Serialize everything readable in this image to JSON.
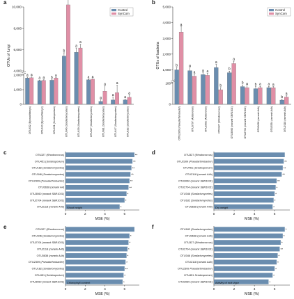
{
  "colors": {
    "control": "#6a8daf",
    "syncom": "#e08fa6",
    "hbar": "#6a8daf",
    "axis": "#333333"
  },
  "legend": {
    "control": "Control",
    "syncom": "SynCom"
  },
  "chart_data": [
    {
      "panel": "a",
      "type": "bar",
      "ylabel": "OTUs of fungi",
      "yticks": [
        "0",
        "1,000",
        "2,000",
        "4,000",
        "6,000",
        "8,000",
        "10,000"
      ],
      "ybreak": [
        2000,
        4000
      ],
      "legend_position": "top-right",
      "categories": [
        "OTU452 (Byssochlamys)",
        "OTU440 (Byssochlamys)",
        "OTU451 (Scedosporium)",
        "OTU346 (Sordariomycetes)",
        "OTU439 (Sordariomycetes)",
        "OTU327 (Sordariomycetes)",
        "OTU381 (Sordariomycetes)",
        "OTU447 (Sordariomycetes)",
        "OTU182 (Sordariomycetes)"
      ],
      "series": [
        {
          "name": "Control",
          "values": [
            1800,
            1620,
            1650,
            5400,
            5750,
            1680,
            200,
            300,
            300
          ]
        },
        {
          "name": "SynCom",
          "values": [
            1820,
            1640,
            1800,
            10200,
            6150,
            1720,
            900,
            800,
            480
          ]
        }
      ],
      "errors": [
        [
          60,
          40,
          30,
          300,
          400,
          30,
          120,
          200,
          60
        ],
        [
          60,
          40,
          30,
          700,
          350,
          30,
          350,
          500,
          150
        ]
      ],
      "sig_letters": [
        [
          "a",
          "a",
          "b",
          "b",
          "a",
          "a",
          "a",
          "a",
          "a"
        ],
        [
          "a",
          "a",
          "a",
          "a",
          "a",
          "a",
          "a",
          "a",
          "a"
        ]
      ]
    },
    {
      "panel": "b",
      "type": "bar",
      "ylabel": "OTUs of bacteria",
      "yticks": [
        "0",
        "100",
        "1,000",
        "2,000",
        "3,000",
        "4,000",
        "5,000"
      ],
      "ybreak": [
        100,
        400
      ],
      "legend_position": "top-right",
      "categories": [
        "OTU2309 (Pseudarthrobacter)",
        "OTU3797 (Acidovorax)",
        "OTU2692 (Acidovorax)",
        "OTU327 (Rhodococcus)",
        "OTU3060 (norank SBR1031)",
        "OTU2704 (norank SBR1031)",
        "OTU3638 (norank A4b)",
        "OTU3554 (norank A4b)",
        "OTU2118 (norank A4b)"
      ],
      "series": [
        {
          "name": "Control",
          "values": [
            1000,
            950,
            700,
            1150,
            820,
            85,
            75,
            80,
            20
          ]
        },
        {
          "name": "SynCom",
          "values": [
            3400,
            600,
            650,
            70,
            1400,
            80,
            80,
            80,
            35
          ]
        }
      ],
      "errors": [
        [
          150,
          180,
          120,
          200,
          100,
          8,
          10,
          6,
          5
        ],
        [
          350,
          120,
          120,
          10,
          150,
          8,
          6,
          5,
          6
        ]
      ],
      "sig_letters": [
        [
          "b",
          "a",
          "a",
          "a",
          "b",
          "b",
          "b",
          "a",
          "b"
        ],
        [
          "a",
          "a",
          "a",
          "b",
          "a",
          "a",
          "a",
          "a",
          "a"
        ]
      ]
    },
    {
      "panel": "c",
      "type": "hbar",
      "xlabel": "MSE (%)",
      "xticks": [
        "0",
        "2",
        "4",
        "6"
      ],
      "xlim": [
        0,
        7.5
      ],
      "note": "Shoot height",
      "categories": [
        "OTU327 (Rhodococcus)",
        "OTU451 (Scedosporium)",
        "OTU182 (Sordariomycetes)",
        "OTU346 (Sordariomycetes)",
        "OTU2309 (Pseudarthrobacter)",
        "OTU3638 (norank A4)",
        "OTU3060 (norank SBR1031)",
        "OTU2704 (norank SBR1031)",
        "OTU2118 (norank A4b)"
      ],
      "values": [
        7.0,
        6.8,
        6.7,
        6.6,
        6.5,
        6.4,
        6.2,
        6.0,
        5.5
      ],
      "stars": [
        "**",
        "**",
        "**",
        "**",
        "**",
        "**",
        "*",
        "*",
        "*"
      ]
    },
    {
      "panel": "d",
      "type": "hbar",
      "xlabel": "MSE (%)",
      "xticks": [
        "0",
        "2",
        "4",
        "6"
      ],
      "xlim": [
        0,
        7.5
      ],
      "note": "Dry weight",
      "categories": [
        "OTU327 (Rhodococcus)",
        "OTU2309 (Pseudarthrobacter)",
        "OTU451 (Scedosporium)",
        "OTU2118 (norank A4b)",
        "OTU3060 (norank SBR1031)",
        "OTU2704 (norank SBR1031)",
        "OTU346 (Sordariomycetes)",
        "OTU182 (Sordariomycetes)",
        "OTU3638 (norank A4b)"
      ],
      "values": [
        7.0,
        6.9,
        6.8,
        6.7,
        6.2,
        6.1,
        6.0,
        5.9,
        5.8
      ],
      "stars": [
        "",
        "**",
        "**",
        "**",
        "**",
        "*",
        "*",
        "*",
        "*"
      ]
    },
    {
      "panel": "e",
      "type": "hbar",
      "xlabel": "MSE (%)",
      "xticks": [
        "0",
        "2",
        "4",
        "6"
      ],
      "xlim": [
        0,
        7.5
      ],
      "note": "Chlorophyll content",
      "categories": [
        "OTU327 (Rhodococcus)",
        "OTU346 (Sordariomycetes)",
        "OTU2704 (norank SBR1031)",
        "OTU2118 (norank A4b)",
        "OTU3638 (norank A4b)",
        "OTU2309 (Pseudarthrobacter)",
        "OTU182 (Sordariomycetes)",
        "OTU451 (Scedosporium)",
        "OTU3060 (norank SBR1031)"
      ],
      "values": [
        7.0,
        6.5,
        6.4,
        6.3,
        6.2,
        6.1,
        6.0,
        5.9,
        5.8
      ],
      "stars": [
        "",
        "*",
        "*",
        "*",
        "*",
        "*",
        "**",
        "*",
        "*"
      ]
    },
    {
      "panel": "f",
      "type": "hbar",
      "xlabel": "MSE (%)",
      "xticks": [
        "0",
        "2",
        "4",
        "6"
      ],
      "xlim": [
        0,
        7.5
      ],
      "note": "Activity of root vigor",
      "categories": [
        "OTU182 (Sordariomycetes)",
        "OTU3638 (norank A4b)",
        "OTU327 (Rhodococcus)",
        "OTU2704 (norank SBR1031)",
        "OTU346 (Sordariomycetes)",
        "OTU2118 (norank A4b)",
        "OTU2309 Pseudarthrobacter)",
        "OTU451 Scedosporium)",
        "OTU3060 (norank SBR1031)"
      ],
      "values": [
        7.0,
        6.8,
        6.6,
        6.5,
        6.3,
        6.2,
        6.0,
        5.8,
        5.4
      ],
      "stars": [
        "*",
        "*",
        "*",
        "**",
        "*",
        "*",
        "*",
        "*",
        "*"
      ]
    }
  ]
}
